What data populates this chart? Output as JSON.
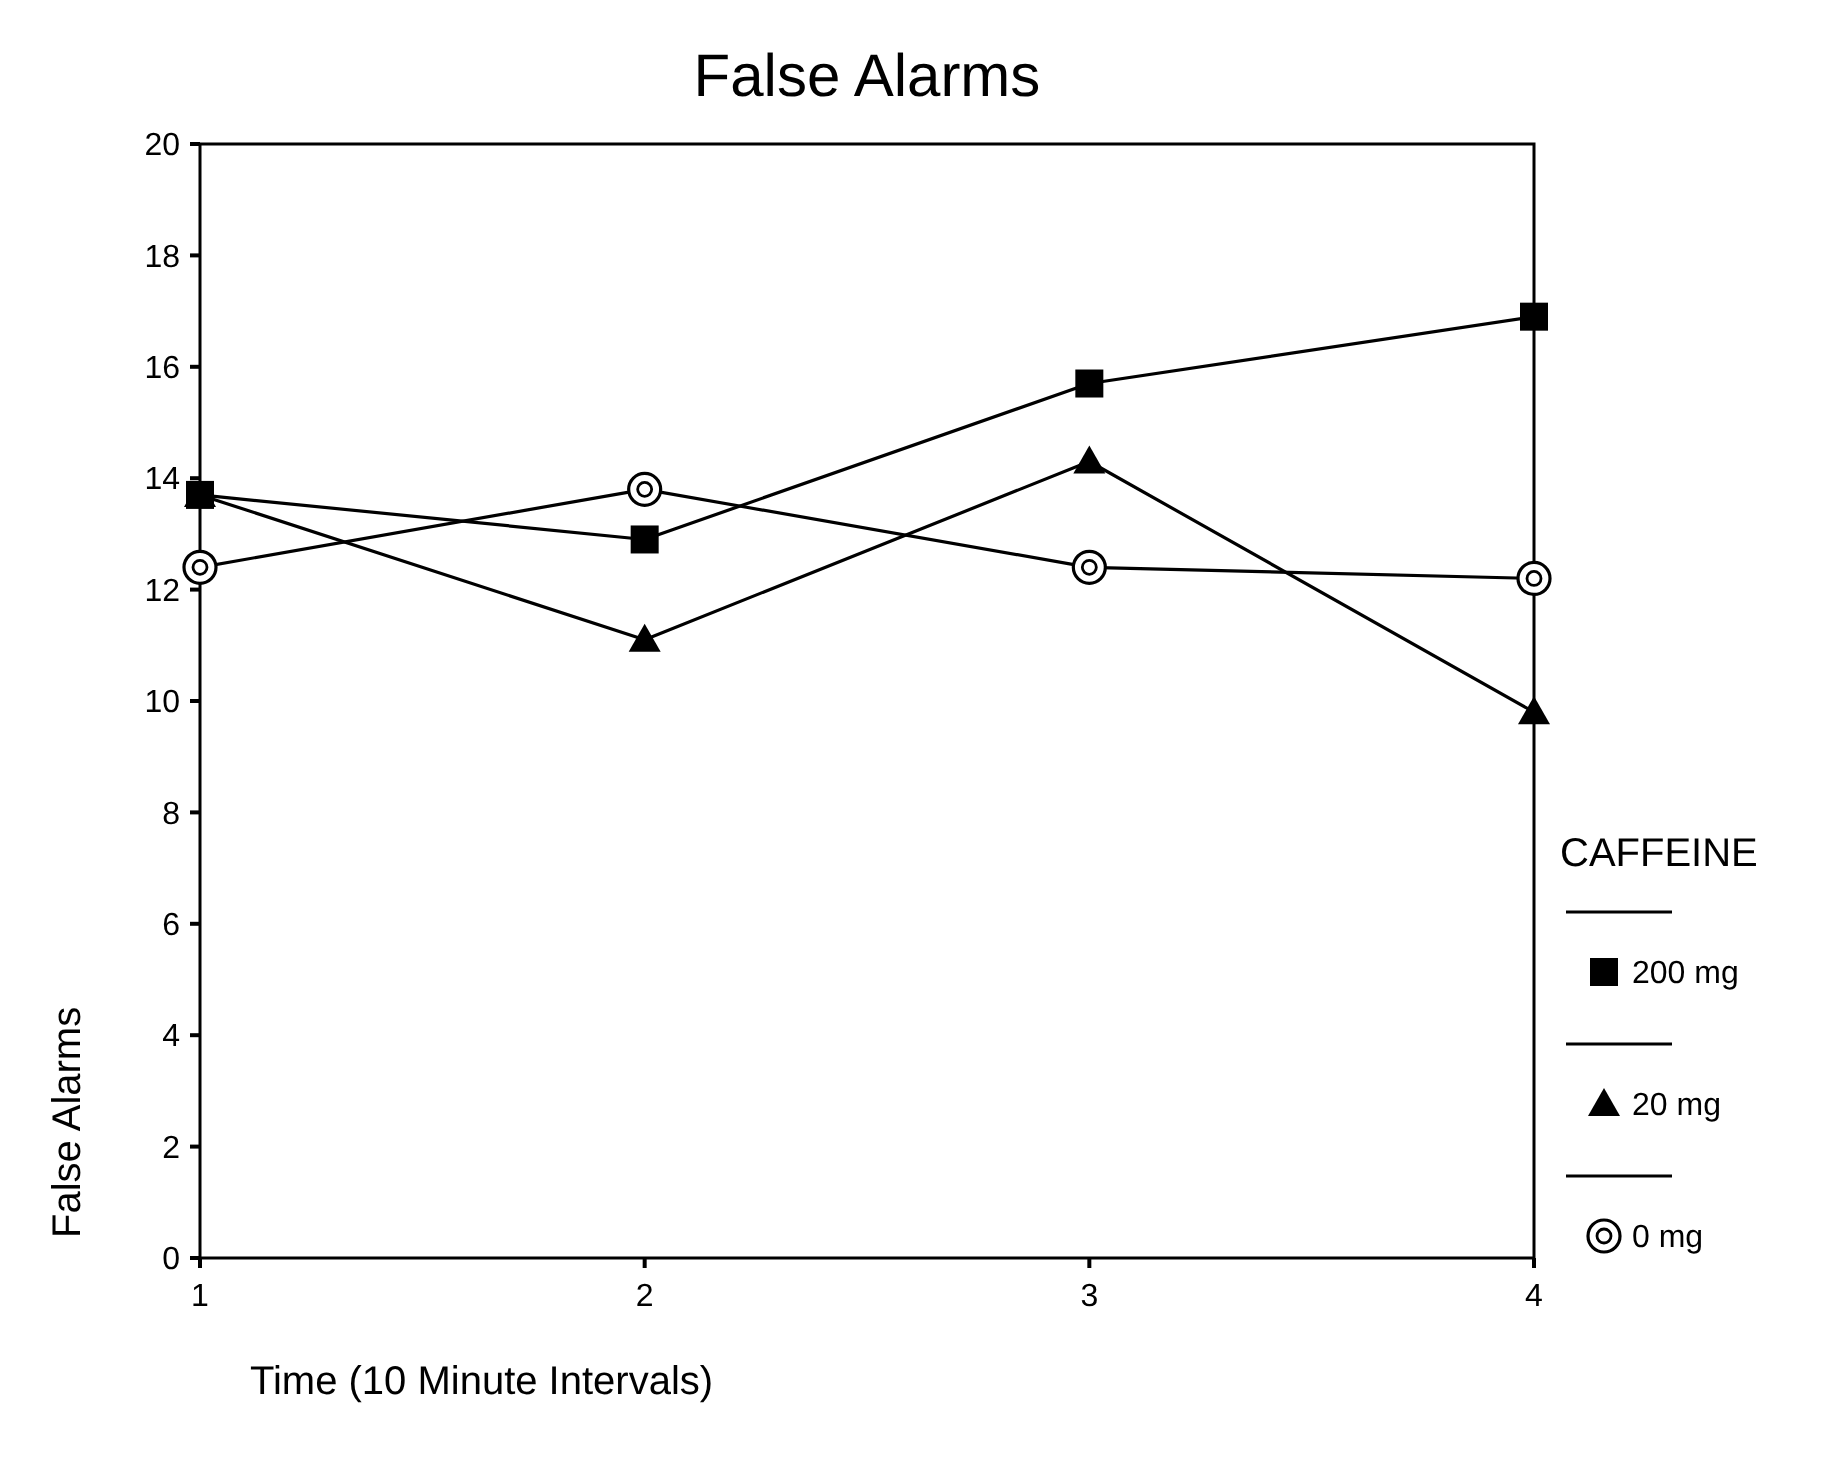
{
  "chart_data": {
    "type": "line",
    "title": "False Alarms",
    "xlabel": "Time (10 Minute Intervals)",
    "ylabel": "False Alarms",
    "legend_title": "CAFFEINE",
    "legend": "right",
    "categories": [
      "1",
      "2",
      "3",
      "4"
    ],
    "ylim": [
      0,
      20
    ],
    "yticks": [
      0,
      2,
      4,
      6,
      8,
      10,
      12,
      14,
      16,
      18,
      20
    ],
    "grid": false,
    "line_style": "solid",
    "series": [
      {
        "name": "200 mg",
        "color": "#000000",
        "marker": "square",
        "values": [
          13.7,
          12.9,
          15.7,
          16.9
        ]
      },
      {
        "name": "20 mg",
        "color": "#000000",
        "marker": "triangle",
        "values": [
          13.7,
          11.1,
          14.3,
          9.8
        ]
      },
      {
        "name": "0 mg",
        "color": "#000000",
        "marker": "circle",
        "values": [
          12.4,
          13.8,
          12.4,
          12.2
        ]
      }
    ]
  }
}
